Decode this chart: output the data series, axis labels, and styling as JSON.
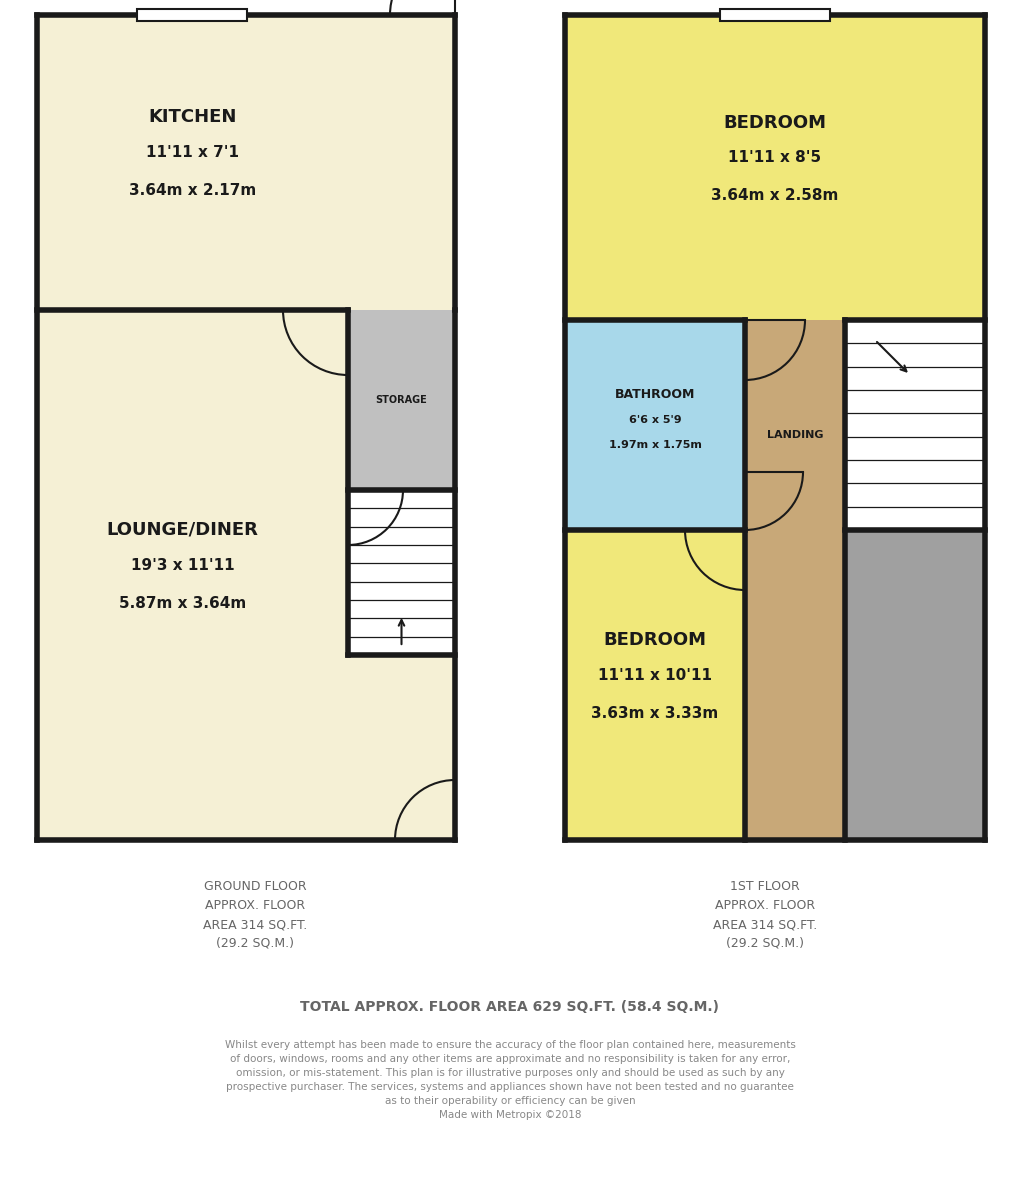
{
  "bg_color": "#ffffff",
  "wall_color": "#1a1a1a",
  "cream": "#f5f0d5",
  "yellow": "#f0e87a",
  "blue": "#a8d8ea",
  "tan": "#c8a878",
  "gray_dark": "#a0a0a0",
  "storage_gray": "#c0c0c0",
  "white": "#ffffff",
  "text_dark": "#1a1a1a",
  "text_gray": "#666666",
  "text_lgray": "#888888",
  "ground_floor_label": "GROUND FLOOR\nAPPROX. FLOOR\nAREA 314 SQ.FT.\n(29.2 SQ.M.)",
  "first_floor_label": "1ST FLOOR\nAPPROX. FLOOR\nAREA 314 SQ.FT.\n(29.2 SQ.M.)",
  "total_label": "TOTAL APPROX. FLOOR AREA 629 SQ.FT. (58.4 SQ.M.)",
  "disclaimer": "Whilst every attempt has been made to ensure the accuracy of the floor plan contained here, measurements\nof doors, windows, rooms and any other items are approximate and no responsibility is taken for any error,\nomission, or mis-statement. This plan is for illustrative purposes only and should be used as such by any\nprospective purchaser. The services, systems and appliances shown have not been tested and no guarantee\nas to their operability or efficiency can be given\nMade with Metropix ©2018"
}
